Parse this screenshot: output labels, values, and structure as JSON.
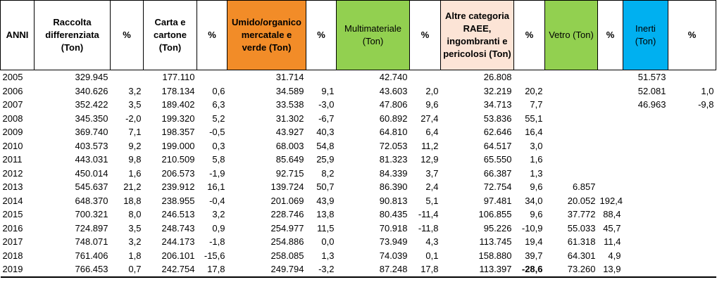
{
  "columns": [
    {
      "label": "ANNI",
      "bg": ""
    },
    {
      "label": "Raccolta differenziata (Ton)",
      "bg": ""
    },
    {
      "label": "%",
      "bg": ""
    },
    {
      "label": "Carta e cartone (Ton)",
      "bg": ""
    },
    {
      "label": "%",
      "bg": ""
    },
    {
      "label": "Umido/organico mercatale e verde  (Ton)",
      "bg": "#f28c28"
    },
    {
      "label": "%",
      "bg": ""
    },
    {
      "label": "Multimateriale (Ton)",
      "bg": "#92d050"
    },
    {
      "label": "%",
      "bg": ""
    },
    {
      "label": "Altre categoria RAEE, ingombranti e pericolosi (Ton)",
      "bg": "#fce4d6"
    },
    {
      "label": "%",
      "bg": ""
    },
    {
      "label": "Vetro (Ton)",
      "bg": "#92d050"
    },
    {
      "label": "%",
      "bg": ""
    },
    {
      "label": "Inerti (Ton)",
      "bg": "#00b0f0"
    },
    {
      "label": "%",
      "bg": ""
    }
  ],
  "rows": [
    [
      "2005",
      "329.945",
      "",
      "177.110",
      "",
      "31.714",
      "",
      "42.740",
      "",
      "26.808",
      "",
      "",
      "",
      "51.573",
      ""
    ],
    [
      "2006",
      "340.626",
      "3,2",
      "178.134",
      "0,6",
      "34.589",
      "9,1",
      "43.603",
      "2,0",
      "32.219",
      "20,2",
      "",
      "",
      "52.081",
      "1,0"
    ],
    [
      "2007",
      "352.422",
      "3,5",
      "189.402",
      "6,3",
      "33.538",
      "-3,0",
      "47.806",
      "9,6",
      "34.713",
      "7,7",
      "",
      "",
      "46.963",
      "-9,8"
    ],
    [
      "2008",
      "345.350",
      "-2,0",
      "199.320",
      "5,2",
      "31.302",
      "-6,7",
      "60.892",
      "27,4",
      "53.836",
      "55,1",
      "",
      "",
      "",
      ""
    ],
    [
      "2009",
      "369.740",
      "7,1",
      "198.357",
      "-0,5",
      "43.927",
      "40,3",
      "64.810",
      "6,4",
      "62.646",
      "16,4",
      "",
      "",
      "",
      ""
    ],
    [
      "2010",
      "403.573",
      "9,2",
      "199.000",
      "0,3",
      "68.003",
      "54,8",
      "72.053",
      "11,2",
      "64.517",
      "3,0",
      "",
      "",
      "",
      ""
    ],
    [
      "2011",
      "443.031",
      "9,8",
      "210.509",
      "5,8",
      "85.649",
      "25,9",
      "81.323",
      "12,9",
      "65.550",
      "1,6",
      "",
      "",
      "",
      ""
    ],
    [
      "2012",
      "450.014",
      "1,6",
      "206.573",
      "-1,9",
      "92.715",
      "8,2",
      "84.339",
      "3,7",
      "66.387",
      "1,3",
      "",
      "",
      "",
      ""
    ],
    [
      "2013",
      "545.637",
      "21,2",
      "239.912",
      "16,1",
      "139.724",
      "50,7",
      "86.390",
      "2,4",
      "72.754",
      "9,6",
      "6.857",
      "",
      "",
      ""
    ],
    [
      "2014",
      "648.370",
      "18,8",
      "238.955",
      "-0,4",
      "201.069",
      "43,9",
      "90.813",
      "5,1",
      "97.481",
      "34,0",
      "20.052",
      "192,4",
      "",
      ""
    ],
    [
      "2015",
      "700.321",
      "8,0",
      "246.513",
      "3,2",
      "228.746",
      "13,8",
      "80.435",
      "-11,4",
      "106.855",
      "9,6",
      "37.772",
      "88,4",
      "",
      ""
    ],
    [
      "2016",
      "724.897",
      "3,5",
      "248.743",
      "0,9",
      "254.977",
      "11,5",
      "70.918",
      "-11,8",
      "95.226",
      "-10,9",
      "55.033",
      "45,7",
      "",
      ""
    ],
    [
      "2017",
      "748.071",
      "3,2",
      "244.173",
      "-1,8",
      "254.886",
      "0,0",
      "73.949",
      "4,3",
      "113.745",
      "19,4",
      "61.318",
      "11,4",
      "",
      ""
    ],
    [
      "2018",
      "761.406",
      "1,8",
      "206.101",
      "-15,6",
      "258.085",
      "1,3",
      "74.039",
      "0,1",
      "158.880",
      "39,7",
      "64.301",
      "4,9",
      "",
      ""
    ],
    [
      "2019",
      "766.453",
      "0,7",
      "242.754",
      "17,8",
      "249.794",
      "-3,2",
      "87.248",
      "17,8",
      "113.397",
      "-28,6",
      "73.260",
      "13,9",
      "",
      ""
    ]
  ],
  "bold_cells": [
    [
      14,
      10
    ]
  ]
}
